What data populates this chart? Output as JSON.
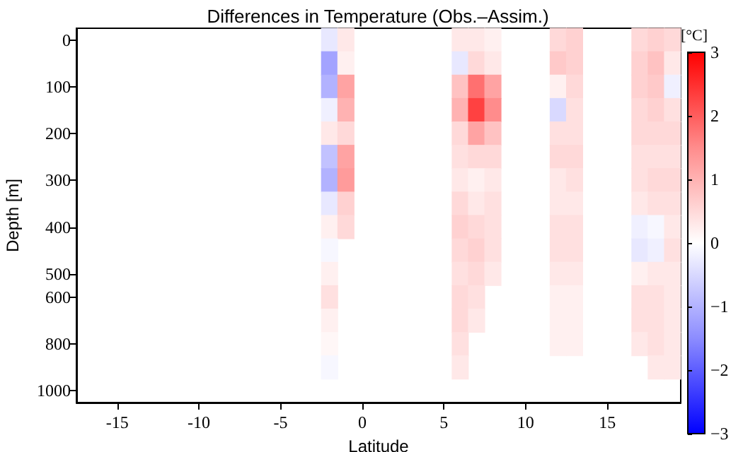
{
  "chart_data": {
    "type": "heatmap",
    "title": "Differences in Temperature (Obs.–Assim.)",
    "xlabel": "Latitude",
    "ylabel": "Depth [m]",
    "clabel": "[°C]",
    "clim": [
      -3,
      3
    ],
    "cticks": [
      -3,
      -2,
      -1,
      0,
      1,
      2,
      3
    ],
    "categories": [
      null,
      null,
      "-15",
      null,
      null,
      null,
      null,
      "-10",
      null,
      null,
      null,
      null,
      "-5",
      null,
      null,
      null,
      null,
      "0",
      null,
      null,
      null,
      null,
      "5",
      null,
      null,
      null,
      null,
      "10",
      null,
      null,
      null,
      null,
      "15",
      null,
      null,
      null,
      null
    ],
    "y_categories": [
      "0",
      null,
      "100",
      null,
      "200",
      null,
      "300",
      null,
      "400",
      null,
      "500",
      "600",
      null,
      "800",
      null,
      "1000"
    ],
    "cells": [
      [
        null,
        null,
        null,
        null,
        null,
        null,
        null,
        null,
        null,
        null,
        null,
        null,
        null,
        null,
        null,
        -0.3,
        0.3,
        null,
        null,
        null,
        null,
        null,
        null,
        0.3,
        0.3,
        0.2,
        null,
        null,
        null,
        0.5,
        0.6,
        null,
        null,
        null,
        0.5,
        0.6,
        0.5
      ],
      [
        null,
        null,
        null,
        null,
        null,
        null,
        null,
        null,
        null,
        null,
        null,
        null,
        null,
        null,
        null,
        -1.2,
        0.2,
        null,
        null,
        null,
        null,
        null,
        null,
        -0.3,
        0.5,
        0.3,
        null,
        null,
        null,
        0.7,
        0.6,
        null,
        null,
        null,
        0.6,
        0.8,
        0.3
      ],
      [
        null,
        null,
        null,
        null,
        null,
        null,
        null,
        null,
        null,
        null,
        null,
        null,
        null,
        null,
        null,
        -1.0,
        1.2,
        null,
        null,
        null,
        null,
        null,
        null,
        0.8,
        1.8,
        1.2,
        null,
        null,
        null,
        0.2,
        0.5,
        null,
        null,
        null,
        0.6,
        0.7,
        -0.2
      ],
      [
        null,
        null,
        null,
        null,
        null,
        null,
        null,
        null,
        null,
        null,
        null,
        null,
        null,
        null,
        null,
        -0.2,
        1.0,
        null,
        null,
        null,
        null,
        null,
        null,
        1.0,
        2.3,
        1.5,
        null,
        null,
        null,
        -0.5,
        0.4,
        null,
        null,
        null,
        0.5,
        0.6,
        0.4
      ],
      [
        null,
        null,
        null,
        null,
        null,
        null,
        null,
        null,
        null,
        null,
        null,
        null,
        null,
        null,
        null,
        0.3,
        0.5,
        null,
        null,
        null,
        null,
        null,
        null,
        0.5,
        1.2,
        0.8,
        null,
        null,
        null,
        0.4,
        0.4,
        null,
        null,
        null,
        0.5,
        0.5,
        0.5
      ],
      [
        null,
        null,
        null,
        null,
        null,
        null,
        null,
        null,
        null,
        null,
        null,
        null,
        null,
        null,
        null,
        -0.8,
        1.2,
        null,
        null,
        null,
        null,
        null,
        null,
        0.4,
        0.5,
        0.5,
        null,
        null,
        null,
        0.5,
        0.5,
        null,
        null,
        null,
        0.4,
        0.4,
        0.4
      ],
      [
        null,
        null,
        null,
        null,
        null,
        null,
        null,
        null,
        null,
        null,
        null,
        null,
        null,
        null,
        null,
        -1.0,
        1.3,
        null,
        null,
        null,
        null,
        null,
        null,
        0.3,
        0.2,
        0.3,
        null,
        null,
        null,
        0.3,
        0.4,
        null,
        null,
        null,
        0.4,
        0.5,
        0.5
      ],
      [
        null,
        null,
        null,
        null,
        null,
        null,
        null,
        null,
        null,
        null,
        null,
        null,
        null,
        null,
        null,
        -0.3,
        0.6,
        null,
        null,
        null,
        null,
        null,
        null,
        0.5,
        0.3,
        0.4,
        null,
        null,
        null,
        0.3,
        0.3,
        null,
        null,
        null,
        0.3,
        0.4,
        0.4
      ],
      [
        null,
        null,
        null,
        null,
        null,
        null,
        null,
        null,
        null,
        null,
        null,
        null,
        null,
        null,
        null,
        0.2,
        0.5,
        null,
        null,
        null,
        null,
        null,
        null,
        0.6,
        0.5,
        0.4,
        null,
        null,
        null,
        0.4,
        0.4,
        null,
        null,
        null,
        -0.2,
        -0.1,
        0.3
      ],
      [
        null,
        null,
        null,
        null,
        null,
        null,
        null,
        null,
        null,
        null,
        null,
        null,
        null,
        null,
        null,
        -0.1,
        null,
        null,
        null,
        null,
        null,
        null,
        null,
        0.5,
        0.6,
        0.4,
        null,
        null,
        null,
        0.4,
        0.4,
        null,
        null,
        null,
        -0.3,
        -0.2,
        0.4
      ],
      [
        null,
        null,
        null,
        null,
        null,
        null,
        null,
        null,
        null,
        null,
        null,
        null,
        null,
        null,
        null,
        0.2,
        null,
        null,
        null,
        null,
        null,
        null,
        null,
        0.4,
        0.5,
        0.3,
        null,
        null,
        null,
        0.3,
        0.3,
        null,
        null,
        null,
        0.2,
        0.3,
        0.3
      ],
      [
        null,
        null,
        null,
        null,
        null,
        null,
        null,
        null,
        null,
        null,
        null,
        null,
        null,
        null,
        null,
        0.4,
        null,
        null,
        null,
        null,
        null,
        null,
        null,
        0.5,
        0.4,
        null,
        null,
        null,
        null,
        0.2,
        0.2,
        null,
        null,
        null,
        0.4,
        0.4,
        0.3
      ],
      [
        null,
        null,
        null,
        null,
        null,
        null,
        null,
        null,
        null,
        null,
        null,
        null,
        null,
        null,
        null,
        0.2,
        null,
        null,
        null,
        null,
        null,
        null,
        null,
        0.5,
        0.3,
        null,
        null,
        null,
        null,
        0.2,
        0.2,
        null,
        null,
        null,
        0.4,
        0.4,
        0.3
      ],
      [
        null,
        null,
        null,
        null,
        null,
        null,
        null,
        null,
        null,
        null,
        null,
        null,
        null,
        null,
        null,
        0.1,
        null,
        null,
        null,
        null,
        null,
        null,
        null,
        0.4,
        null,
        null,
        null,
        null,
        null,
        0.2,
        0.2,
        null,
        null,
        null,
        0.3,
        0.4,
        0.3
      ],
      [
        null,
        null,
        null,
        null,
        null,
        null,
        null,
        null,
        null,
        null,
        null,
        null,
        null,
        null,
        null,
        -0.1,
        null,
        null,
        null,
        null,
        null,
        null,
        null,
        0.3,
        null,
        null,
        null,
        null,
        null,
        null,
        null,
        null,
        null,
        null,
        null,
        0.3,
        0.3
      ],
      [
        null,
        null,
        null,
        null,
        null,
        null,
        null,
        null,
        null,
        null,
        null,
        null,
        null,
        null,
        null,
        null,
        null,
        null,
        null,
        null,
        null,
        null,
        null,
        null,
        null,
        null,
        null,
        null,
        null,
        null,
        null,
        null,
        null,
        null,
        null,
        null,
        null
      ]
    ]
  }
}
